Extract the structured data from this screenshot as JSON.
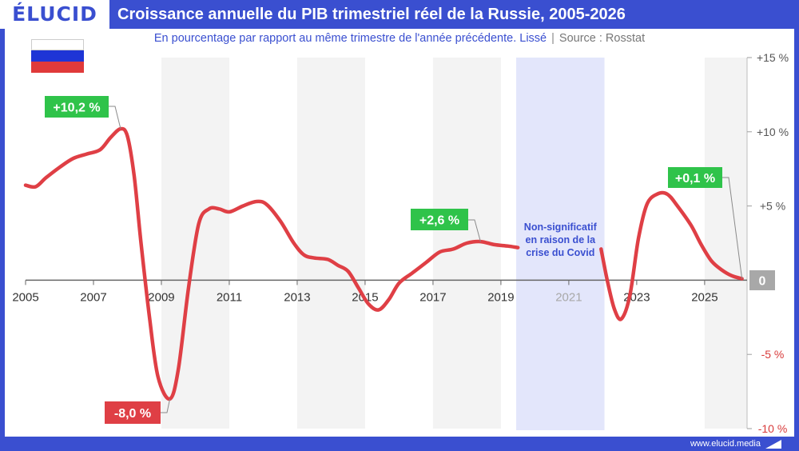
{
  "header": {
    "logo": "ÉLUCID",
    "title": "Croissance annuelle du PIB trimestriel réel de la Russie, 2005-2026"
  },
  "subtitle": {
    "text": "En pourcentage par rapport au même trimestre de l'année précédente. Lissé",
    "separator": "|",
    "source": "Source : Rosstat"
  },
  "footer": {
    "website": "www.elucid.media"
  },
  "flag": {
    "country": "Russia",
    "stripes": [
      "#ffffff",
      "#1e35d6",
      "#e03a3a"
    ]
  },
  "colors": {
    "brand": "#3a4fd0",
    "line": "#df3f45",
    "positive_label": "#2fc34a",
    "negative_label": "#df3f45",
    "zero_label": "#a8a8a8",
    "covid_band": "#e3e6fb",
    "covid_text": "#3a4fd0",
    "year_band": "#f3f3f3"
  },
  "chart_data": {
    "type": "line",
    "title": "Croissance annuelle du PIB trimestriel réel de la Russie, 2005-2026",
    "xlim": [
      2005,
      2026.25
    ],
    "ylim": [
      -10,
      15
    ],
    "y_ticks": [
      {
        "value": 15,
        "label": "+15 %"
      },
      {
        "value": 10,
        "label": "+10 %"
      },
      {
        "value": 5,
        "label": "+5 %"
      },
      {
        "value": -5,
        "label": "-5 %"
      },
      {
        "value": -10,
        "label": "-10 %"
      }
    ],
    "x_ticks": [
      {
        "value": 2005,
        "label": "2005"
      },
      {
        "value": 2007,
        "label": "2007"
      },
      {
        "value": 2009,
        "label": "2009"
      },
      {
        "value": 2011,
        "label": "2011"
      },
      {
        "value": 2013,
        "label": "2013"
      },
      {
        "value": 2015,
        "label": "2015"
      },
      {
        "value": 2017,
        "label": "2017"
      },
      {
        "value": 2019,
        "label": "2019"
      },
      {
        "value": 2021,
        "label": "2021",
        "muted": true
      },
      {
        "value": 2023,
        "label": "2023"
      },
      {
        "value": 2025,
        "label": "2025"
      }
    ],
    "shaded_year_bands": [
      [
        2009,
        2011
      ],
      [
        2013,
        2015
      ],
      [
        2017,
        2019
      ],
      [
        2025,
        2026.25
      ]
    ],
    "covid_band": {
      "x_range": [
        2019.45,
        2022.05
      ],
      "text": [
        "Non-significatif",
        "en raison de la",
        "crise du Covid"
      ]
    },
    "series": [
      {
        "segments": [
          [
            [
              2005.0,
              6.4
            ],
            [
              2005.3,
              6.3
            ],
            [
              2005.6,
              6.9
            ],
            [
              2006.0,
              7.6
            ],
            [
              2006.4,
              8.2
            ],
            [
              2006.8,
              8.5
            ],
            [
              2007.2,
              8.8
            ],
            [
              2007.5,
              9.6
            ],
            [
              2007.8,
              10.2
            ],
            [
              2008.0,
              9.7
            ],
            [
              2008.2,
              7.0
            ],
            [
              2008.4,
              2.5
            ],
            [
              2008.65,
              -2.5
            ],
            [
              2008.9,
              -6.5
            ],
            [
              2009.25,
              -8.0
            ],
            [
              2009.5,
              -6.0
            ],
            [
              2009.8,
              -0.5
            ],
            [
              2010.1,
              3.8
            ],
            [
              2010.4,
              4.8
            ],
            [
              2010.7,
              4.8
            ],
            [
              2011.0,
              4.6
            ],
            [
              2011.4,
              5.0
            ],
            [
              2011.8,
              5.3
            ],
            [
              2012.1,
              5.1
            ],
            [
              2012.5,
              4.0
            ],
            [
              2012.9,
              2.5
            ],
            [
              2013.2,
              1.7
            ],
            [
              2013.5,
              1.5
            ],
            [
              2013.9,
              1.4
            ],
            [
              2014.2,
              1.0
            ],
            [
              2014.5,
              0.6
            ],
            [
              2014.8,
              -0.5
            ],
            [
              2015.1,
              -1.6
            ],
            [
              2015.4,
              -2.0
            ],
            [
              2015.7,
              -1.3
            ],
            [
              2016.0,
              -0.2
            ],
            [
              2016.4,
              0.5
            ],
            [
              2016.8,
              1.2
            ],
            [
              2017.2,
              1.9
            ],
            [
              2017.6,
              2.1
            ],
            [
              2018.0,
              2.5
            ],
            [
              2018.4,
              2.6
            ],
            [
              2018.8,
              2.4
            ],
            [
              2019.2,
              2.3
            ],
            [
              2019.5,
              2.2
            ]
          ],
          [
            [
              2021.95,
              2.1
            ],
            [
              2022.15,
              -0.2
            ],
            [
              2022.35,
              -2.0
            ],
            [
              2022.55,
              -2.6
            ],
            [
              2022.8,
              -1.0
            ],
            [
              2023.05,
              2.8
            ],
            [
              2023.3,
              5.1
            ],
            [
              2023.6,
              5.8
            ],
            [
              2023.9,
              5.8
            ],
            [
              2024.2,
              5.0
            ],
            [
              2024.6,
              3.7
            ],
            [
              2024.9,
              2.4
            ],
            [
              2025.2,
              1.3
            ],
            [
              2025.5,
              0.7
            ],
            [
              2025.8,
              0.3
            ],
            [
              2026.1,
              0.1
            ]
          ]
        ]
      }
    ],
    "annotations": [
      {
        "text": "+10,2 %",
        "kind": "positive",
        "value": 10.2,
        "x": 2007.8
      },
      {
        "text": "-8,0 %",
        "kind": "negative",
        "value": -8.0,
        "x": 2009.25
      },
      {
        "text": "+2,6 %",
        "kind": "positive",
        "value": 2.6,
        "x": 2018.4
      },
      {
        "text": "+0,1 %",
        "kind": "positive",
        "value": 0.1,
        "x": 2026.1
      },
      {
        "text": "0",
        "kind": "zero",
        "value": 0,
        "x": 2026.25
      }
    ]
  }
}
